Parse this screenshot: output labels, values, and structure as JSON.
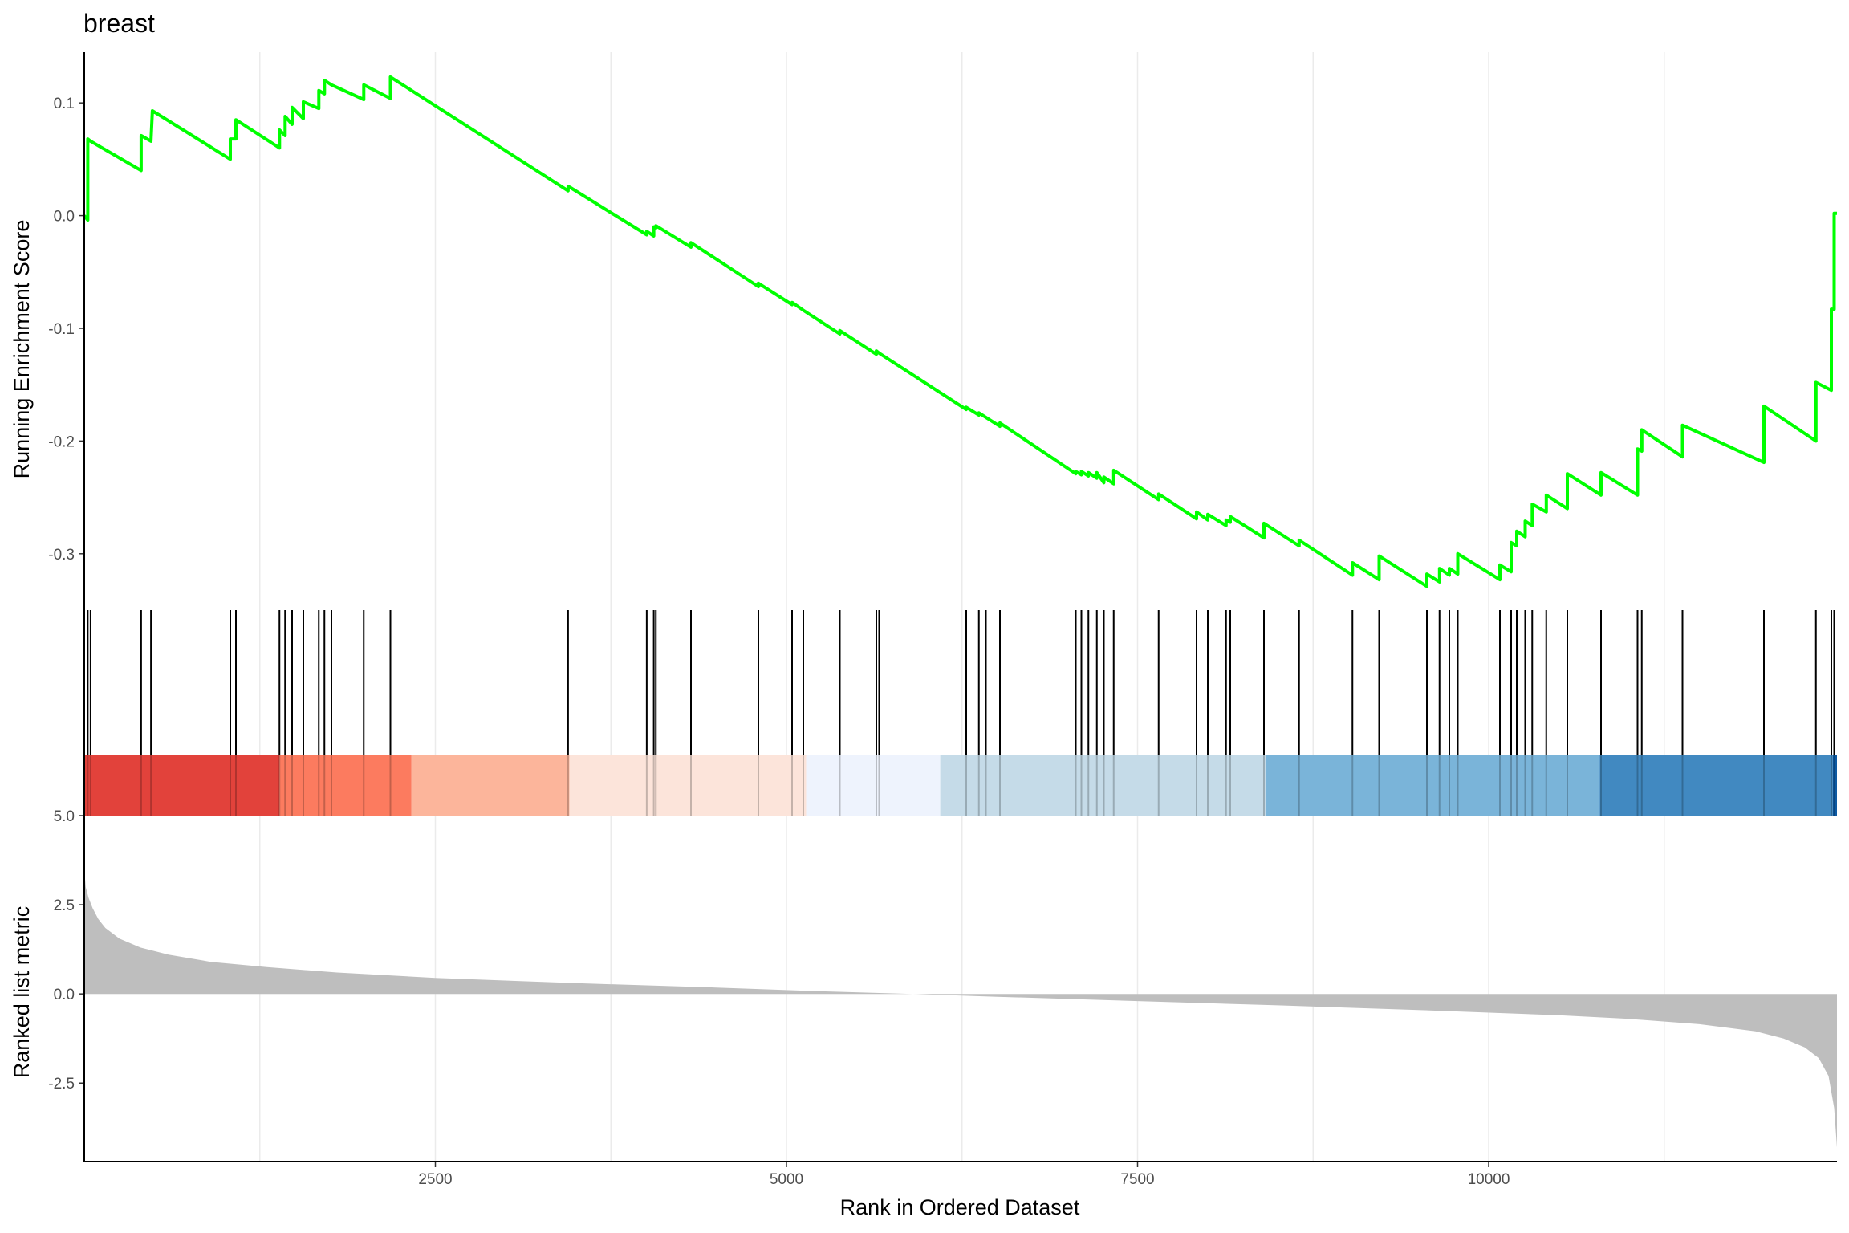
{
  "chart_data": {
    "type": "line",
    "title": "breast",
    "xlabel": "Rank in Ordered Dataset",
    "xlim": [
      0,
      12480
    ],
    "xticks": [
      2500,
      5000,
      7500,
      10000
    ],
    "xtick_labels": [
      "2500",
      "5000",
      "7500",
      "10000"
    ],
    "grid": "vertical",
    "panels": {
      "running_score": {
        "ylabel": "Running Enrichment Score",
        "ylim": [
          -0.35,
          0.145
        ],
        "yticks": [
          0.1,
          0.0,
          -0.1,
          -0.2,
          -0.3
        ],
        "ytick_labels": [
          "0.1",
          "0.0",
          "-0.1",
          "-0.2",
          "-0.3"
        ],
        "line_color": "#00ff00",
        "series": [
          {
            "x": [
              0,
              25,
              25,
              45,
              45,
              405,
              405,
              475,
              475,
              485,
              485,
              1040,
              1040,
              1080,
              1080,
              1390,
              1390,
              1430,
              1430,
              1480,
              1480,
              1560,
              1560,
              1670,
              1670,
              1710,
              1710,
              1760,
              1760,
              1990,
              1990,
              2180,
              2180,
              3445,
              3445,
              3460,
              4005,
              4005,
              4055,
              4055,
              4070,
              4070,
              4320,
              4320,
              4800,
              4800,
              5040,
              5040,
              5120,
              5380,
              5380,
              5640,
              5640,
              5660,
              6280,
              6280,
              6370,
              6370,
              6420,
              6520,
              6520,
              7060,
              7060,
              7100,
              7100,
              7150,
              7150,
              7210,
              7210,
              7260,
              7260,
              7330,
              7330,
              7650,
              7650,
              7920,
              7920,
              8000,
              8000,
              8130,
              8130,
              8160,
              8160,
              8400,
              8400,
              8650,
              8650,
              9030,
              9030,
              9220,
              9220,
              9560,
              9560,
              9650,
              9650,
              9720,
              9720,
              9780,
              9780,
              10080,
              10080,
              10160,
              10160,
              10200,
              10200,
              10260,
              10260,
              10310,
              10310,
              10410,
              10410,
              10560,
              10560,
              10800,
              10800,
              11060,
              11060,
              11090,
              11090,
              11380,
              11380,
              11960,
              11960,
              12330,
              12330,
              12440,
              12440,
              12460,
              12460,
              12480
            ],
            "y": [
              0.0,
              -0.004,
              0.068,
              0.066,
              0.066,
              0.04,
              0.071,
              0.066,
              0.066,
              0.093,
              0.093,
              0.05,
              0.068,
              0.068,
              0.085,
              0.06,
              0.076,
              0.071,
              0.088,
              0.081,
              0.096,
              0.086,
              0.101,
              0.095,
              0.111,
              0.108,
              0.12,
              0.116,
              0.116,
              0.103,
              0.116,
              0.104,
              0.123,
              0.022,
              0.026,
              0.025,
              -0.017,
              -0.014,
              -0.018,
              -0.01,
              -0.011,
              -0.009,
              -0.028,
              -0.024,
              -0.063,
              -0.06,
              -0.079,
              -0.077,
              -0.084,
              -0.105,
              -0.102,
              -0.123,
              -0.12,
              -0.122,
              -0.172,
              -0.17,
              -0.177,
              -0.175,
              -0.179,
              -0.187,
              -0.184,
              -0.229,
              -0.227,
              -0.23,
              -0.227,
              -0.231,
              -0.228,
              -0.233,
              -0.228,
              -0.237,
              -0.232,
              -0.238,
              -0.226,
              -0.252,
              -0.247,
              -0.269,
              -0.263,
              -0.27,
              -0.265,
              -0.275,
              -0.27,
              -0.272,
              -0.267,
              -0.286,
              -0.273,
              -0.293,
              -0.288,
              -0.319,
              -0.308,
              -0.323,
              -0.302,
              -0.329,
              -0.318,
              -0.325,
              -0.313,
              -0.319,
              -0.313,
              -0.318,
              -0.3,
              -0.323,
              -0.31,
              -0.316,
              -0.29,
              -0.293,
              -0.28,
              -0.285,
              -0.271,
              -0.275,
              -0.256,
              -0.263,
              -0.248,
              -0.26,
              -0.229,
              -0.248,
              -0.228,
              -0.248,
              -0.207,
              -0.209,
              -0.19,
              -0.214,
              -0.186,
              -0.219,
              -0.169,
              -0.2,
              -0.148,
              -0.155,
              -0.083,
              -0.083,
              0.002,
              0.002
            ]
          }
        ]
      },
      "hits": {
        "tick_color": "#000000",
        "positions": [
          25,
          45,
          405,
          475,
          1040,
          1080,
          1390,
          1430,
          1480,
          1560,
          1670,
          1710,
          1760,
          1990,
          2180,
          3445,
          4005,
          4055,
          4070,
          4320,
          4800,
          5040,
          5120,
          5380,
          5640,
          5660,
          6280,
          6370,
          6420,
          6520,
          7060,
          7100,
          7150,
          7210,
          7260,
          7330,
          7650,
          7920,
          8000,
          8130,
          8160,
          8400,
          8650,
          9030,
          9220,
          9560,
          9650,
          9720,
          9780,
          10080,
          10160,
          10200,
          10260,
          10310,
          10410,
          10560,
          10800,
          11060,
          11090,
          11380,
          11960,
          12330,
          12440,
          12460
        ]
      },
      "color_bar": {
        "segments": [
          {
            "from": 0,
            "to": 1390,
            "color": "#e2423b"
          },
          {
            "from": 1390,
            "to": 2330,
            "color": "#fc7b5f"
          },
          {
            "from": 2330,
            "to": 3455,
            "color": "#fcb59b"
          },
          {
            "from": 3455,
            "to": 5140,
            "color": "#fce4da"
          },
          {
            "from": 5140,
            "to": 6095,
            "color": "#eef3fd"
          },
          {
            "from": 6095,
            "to": 8415,
            "color": "#c5dbe8"
          },
          {
            "from": 8415,
            "to": 10790,
            "color": "#7ab4d9"
          },
          {
            "from": 10790,
            "to": 12450,
            "color": "#4189c1"
          },
          {
            "from": 12450,
            "to": 12480,
            "color": "#0c59a2"
          }
        ]
      },
      "ranked_metric": {
        "ylabel": "Ranked list metric",
        "ylim": [
          -4.7,
          5.0
        ],
        "yticks": [
          5.0,
          2.5,
          0.0,
          -2.5
        ],
        "ytick_labels": [
          "5.0",
          "2.5",
          "0.0",
          "-2.5"
        ],
        "fill_color": "#bebebe",
        "x": [
          0,
          10,
          30,
          60,
          100,
          150,
          250,
          400,
          600,
          900,
          1300,
          1800,
          2500,
          3500,
          4500,
          5200,
          5900,
          6500,
          7500,
          8500,
          9500,
          10500,
          11000,
          11500,
          11900,
          12100,
          12250,
          12350,
          12420,
          12460,
          12480
        ],
        "y": [
          3.5,
          3.0,
          2.7,
          2.4,
          2.1,
          1.85,
          1.55,
          1.3,
          1.1,
          0.9,
          0.75,
          0.6,
          0.45,
          0.3,
          0.18,
          0.08,
          0.0,
          -0.08,
          -0.2,
          -0.32,
          -0.45,
          -0.6,
          -0.7,
          -0.85,
          -1.05,
          -1.25,
          -1.5,
          -1.8,
          -2.3,
          -3.2,
          -4.3
        ]
      }
    }
  }
}
